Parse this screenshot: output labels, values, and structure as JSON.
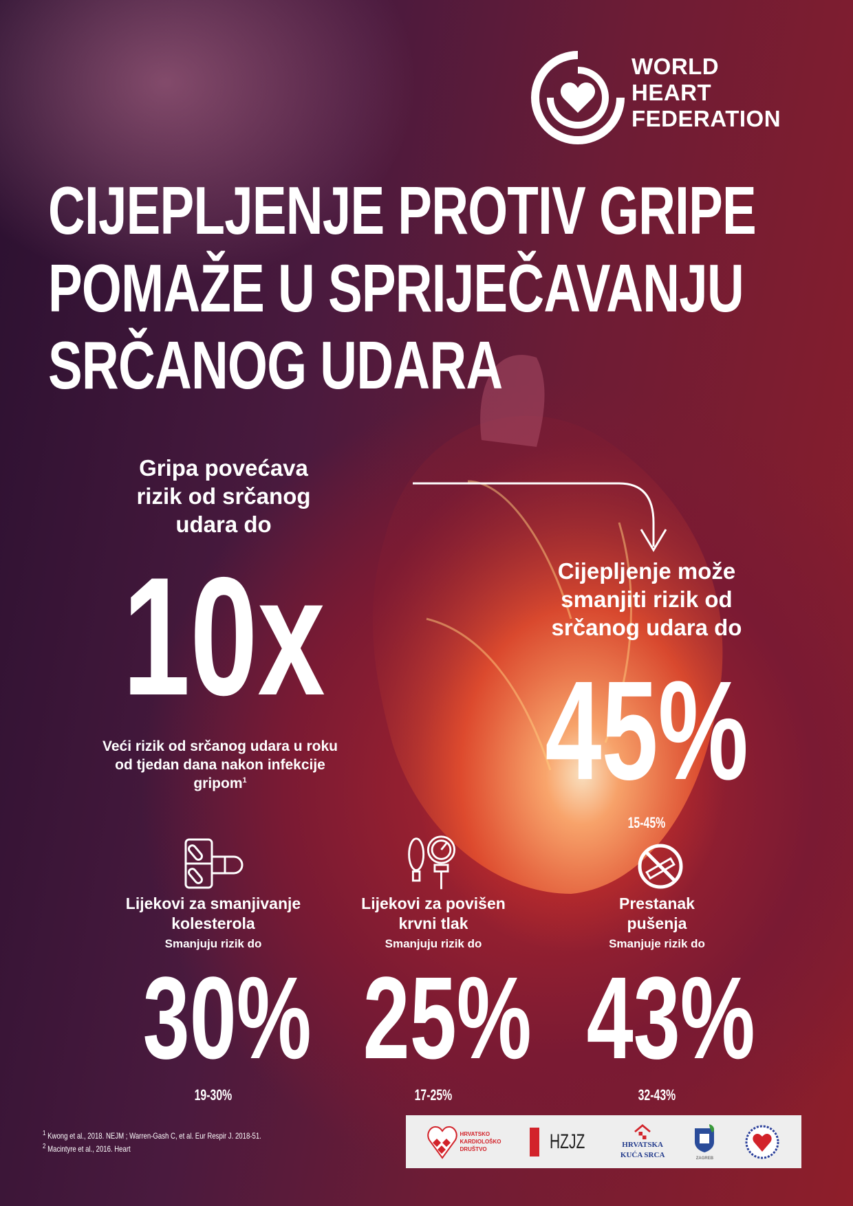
{
  "logo": {
    "lines": [
      "WORLD",
      "HEART",
      "FEDERATION"
    ]
  },
  "title": [
    "CIJEPLJENJE PROTIV GRIPE",
    "POMAŽE U SPRIJEČAVANJU",
    "SRČANOG UDARA"
  ],
  "left": {
    "lines": [
      "Gripa povećava",
      "rizik od srčanog",
      "udara do"
    ],
    "value": "10x",
    "note": [
      "Veći rizik od srčanog udara u roku",
      "od tjedan dana nakon infekcije",
      "gripom"
    ],
    "note_ref": "1"
  },
  "right": {
    "lines": [
      "Cijepljenje može",
      "smanjiti rizik od",
      "srčanog udara do"
    ],
    "value": "45%",
    "range": "15-45%"
  },
  "stats": [
    {
      "icon": "pills-icon",
      "label": [
        "Lijekovi za smanjivanje",
        "kolesterola"
      ],
      "sub": "Smanjuju rizik do",
      "value": "30%",
      "range": "19-30%"
    },
    {
      "icon": "blood-pressure-gauge-icon",
      "label": [
        "Lijekovi za povišen",
        "krvni tlak"
      ],
      "sub": "Smanjuju rizik do",
      "value": "25%",
      "range": "17-25%"
    },
    {
      "icon": "no-smoking-icon",
      "label": [
        "Prestanak",
        "pušenja"
      ],
      "sub": "Smanjuje rizik do",
      "value": "43%",
      "range": "32-43%"
    }
  ],
  "footnotes": [
    {
      "ref": "1",
      "text": "Kwong et al., 2018. NEJM ; Warren-Gash C, et al. Eur Respir J. 2018-51."
    },
    {
      "ref": "2",
      "text": "Macintyre et al., 2016. Heart"
    }
  ],
  "partners": {
    "hkd": [
      "HRVATSKO",
      "KARDIOLOŠKO",
      "DRUŠTVO"
    ],
    "hzjz": "HZJZ",
    "hks": [
      "HRVATSKA",
      "KUĆA SRCA"
    ],
    "zagreb": "ZAGREB"
  },
  "colors": {
    "accent": "#d2232a",
    "text": "#ffffff"
  }
}
